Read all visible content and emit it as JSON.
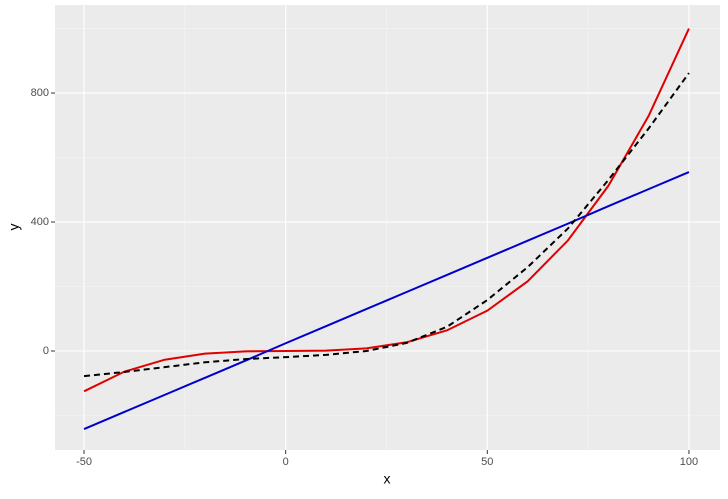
{
  "chart_data": {
    "type": "line",
    "xlabel": "x",
    "ylabel": "y",
    "x": [
      -50,
      -40,
      -30,
      -20,
      -10,
      0,
      10,
      20,
      30,
      40,
      50,
      60,
      70,
      80,
      90,
      100
    ],
    "series": [
      {
        "color": "#e00000",
        "dash": false,
        "values": [
          -125,
          -64,
          -27,
          -8,
          -1,
          0,
          1,
          8,
          27,
          64,
          125,
          216,
          343,
          512,
          729,
          1000
        ]
      },
      {
        "color": "#0000cc",
        "dash": false,
        "values": [
          -242,
          -189,
          -136,
          -83,
          -30,
          24,
          77,
          130,
          183,
          236,
          289,
          342,
          395,
          449,
          502,
          555
        ]
      },
      {
        "color": "#000000",
        "dash": true,
        "values": [
          -78,
          -65,
          -50,
          -35,
          -25,
          -19,
          -12,
          0,
          25,
          75,
          158,
          260,
          380,
          530,
          690,
          862
        ]
      }
    ],
    "xlim": [
      -57.2,
      107.7
    ],
    "ylim": [
      -307,
      1073
    ],
    "xticks": [
      -50,
      0,
      50,
      100
    ],
    "yticks": [
      0,
      400,
      800
    ],
    "xminor": [
      -25,
      25,
      75
    ],
    "yminor": [
      -200,
      200,
      600,
      1000
    ],
    "grid": true
  }
}
